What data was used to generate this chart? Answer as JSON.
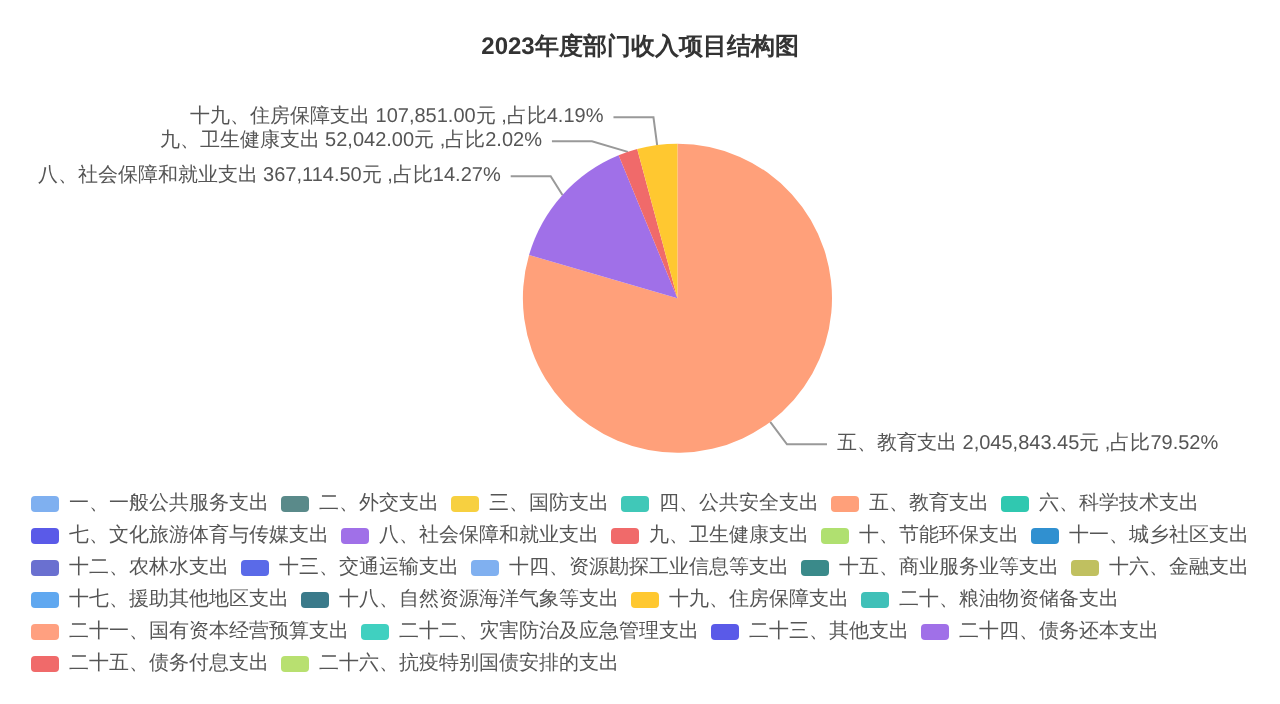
{
  "chart_data": {
    "type": "pie",
    "title": "2023年度部门收入项目结构图",
    "categories": [
      "一、一般公共服务支出",
      "二、外交支出",
      "三、国防支出",
      "四、公共安全支出",
      "五、教育支出",
      "六、科学技术支出",
      "七、文化旅游体育与传媒支出",
      "八、社会保障和就业支出",
      "九、卫生健康支出",
      "十、节能环保支出",
      "十一、城乡社区支出",
      "十二、农林水支出",
      "十三、交通运输支出",
      "十四、资源勘探工业信息等支出",
      "十五、商业服务业等支出",
      "十六、金融支出",
      "十七、援助其他地区支出",
      "十八、自然资源海洋气象等支出",
      "十九、住房保障支出",
      "二十、粮油物资储备支出",
      "二十一、国有资本经营预算支出",
      "二十二、灾害防治及应急管理支出",
      "二十三、其他支出",
      "二十四、债务还本支出",
      "二十五、债务付息支出",
      "二十六、抗疫特别国债安排的支出"
    ],
    "values": [
      0,
      0,
      0,
      0,
      2045843.45,
      0,
      0,
      367114.5,
      52042,
      0,
      0,
      0,
      0,
      0,
      0,
      0,
      0,
      0,
      107851,
      0,
      0,
      0,
      0,
      0,
      0,
      0
    ],
    "value_labels": [
      null,
      null,
      null,
      null,
      "2,045,843.45元 ,占比79.52%",
      null,
      null,
      "367,114.50元 ,占比14.27%",
      "52,042.00元 ,占比2.02%",
      null,
      null,
      null,
      null,
      null,
      null,
      null,
      null,
      null,
      "107,851.00元 ,占比4.19%",
      null,
      null,
      null,
      null,
      null,
      null,
      null
    ],
    "colors": [
      "#7fb0f0",
      "#5a8a8a",
      "#f7d040",
      "#40c8b8",
      "#ffa07a",
      "#30c8b0",
      "#5a5ae8",
      "#a070e8",
      "#f06a6a",
      "#b0e070",
      "#3090d0",
      "#6a70d0",
      "#5a6ae8",
      "#80b0f0",
      "#3a8a8a",
      "#c0c060",
      "#60a8f0",
      "#3a7a8a",
      "#ffc830",
      "#40c0b8",
      "#ffa080",
      "#40d0c0",
      "#5a5ae8",
      "#a070e8",
      "#f06a6a",
      "#b8e070"
    ],
    "legend": "bottom"
  }
}
